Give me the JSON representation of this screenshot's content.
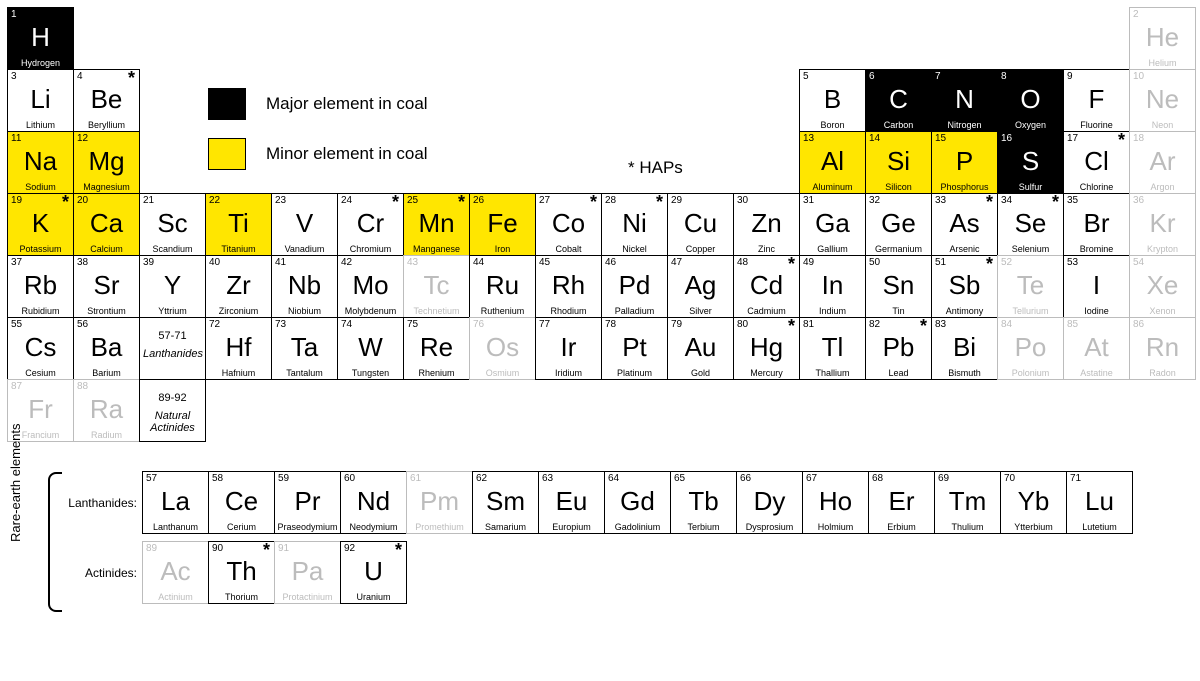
{
  "colors": {
    "major": "#000000",
    "major_text": "#ffffff",
    "minor": "#ffe600",
    "faded": "#bcbcbc",
    "normal": "#000000",
    "background": "#ffffff"
  },
  "legend": {
    "major": "Major element in coal",
    "minor": "Minor element in coal",
    "haps": "* HAPs"
  },
  "main_grid": {
    "cols": 18,
    "rows": 7
  },
  "mainCells": [
    {
      "r": 1,
      "c": 1,
      "n": "1",
      "s": "H",
      "name": "Hydrogen",
      "style": "major"
    },
    {
      "r": 1,
      "c": 18,
      "n": "2",
      "s": "He",
      "name": "Helium",
      "style": "faded"
    },
    {
      "r": 2,
      "c": 1,
      "n": "3",
      "s": "Li",
      "name": "Lithium",
      "style": "normal"
    },
    {
      "r": 2,
      "c": 2,
      "n": "4",
      "s": "Be",
      "name": "Beryllium",
      "style": "normal",
      "hap": true
    },
    {
      "r": 2,
      "c": 13,
      "n": "5",
      "s": "B",
      "name": "Boron",
      "style": "normal"
    },
    {
      "r": 2,
      "c": 14,
      "n": "6",
      "s": "C",
      "name": "Carbon",
      "style": "major"
    },
    {
      "r": 2,
      "c": 15,
      "n": "7",
      "s": "N",
      "name": "Nitrogen",
      "style": "major"
    },
    {
      "r": 2,
      "c": 16,
      "n": "8",
      "s": "O",
      "name": "Oxygen",
      "style": "major"
    },
    {
      "r": 2,
      "c": 17,
      "n": "9",
      "s": "F",
      "name": "Fluorine",
      "style": "normal"
    },
    {
      "r": 2,
      "c": 18,
      "n": "10",
      "s": "Ne",
      "name": "Neon",
      "style": "faded"
    },
    {
      "r": 3,
      "c": 1,
      "n": "11",
      "s": "Na",
      "name": "Sodium",
      "style": "minor"
    },
    {
      "r": 3,
      "c": 2,
      "n": "12",
      "s": "Mg",
      "name": "Magnesium",
      "style": "minor"
    },
    {
      "r": 3,
      "c": 13,
      "n": "13",
      "s": "Al",
      "name": "Aluminum",
      "style": "minor"
    },
    {
      "r": 3,
      "c": 14,
      "n": "14",
      "s": "Si",
      "name": "Silicon",
      "style": "minor"
    },
    {
      "r": 3,
      "c": 15,
      "n": "15",
      "s": "P",
      "name": "Phosphorus",
      "style": "minor"
    },
    {
      "r": 3,
      "c": 16,
      "n": "16",
      "s": "S",
      "name": "Sulfur",
      "style": "major"
    },
    {
      "r": 3,
      "c": 17,
      "n": "17",
      "s": "Cl",
      "name": "Chlorine",
      "style": "normal",
      "hap": true
    },
    {
      "r": 3,
      "c": 18,
      "n": "18",
      "s": "Ar",
      "name": "Argon",
      "style": "faded"
    },
    {
      "r": 4,
      "c": 1,
      "n": "19",
      "s": "K",
      "name": "Potassium",
      "style": "minor",
      "hap": true
    },
    {
      "r": 4,
      "c": 2,
      "n": "20",
      "s": "Ca",
      "name": "Calcium",
      "style": "minor"
    },
    {
      "r": 4,
      "c": 3,
      "n": "21",
      "s": "Sc",
      "name": "Scandium",
      "style": "normal"
    },
    {
      "r": 4,
      "c": 4,
      "n": "22",
      "s": "Ti",
      "name": "Titanium",
      "style": "minor"
    },
    {
      "r": 4,
      "c": 5,
      "n": "23",
      "s": "V",
      "name": "Vanadium",
      "style": "normal"
    },
    {
      "r": 4,
      "c": 6,
      "n": "24",
      "s": "Cr",
      "name": "Chromium",
      "style": "normal",
      "hap": true
    },
    {
      "r": 4,
      "c": 7,
      "n": "25",
      "s": "Mn",
      "name": "Manganese",
      "style": "minor",
      "hap": true
    },
    {
      "r": 4,
      "c": 8,
      "n": "26",
      "s": "Fe",
      "name": "Iron",
      "style": "minor"
    },
    {
      "r": 4,
      "c": 9,
      "n": "27",
      "s": "Co",
      "name": "Cobalt",
      "style": "normal",
      "hap": true
    },
    {
      "r": 4,
      "c": 10,
      "n": "28",
      "s": "Ni",
      "name": "Nickel",
      "style": "normal",
      "hap": true
    },
    {
      "r": 4,
      "c": 11,
      "n": "29",
      "s": "Cu",
      "name": "Copper",
      "style": "normal"
    },
    {
      "r": 4,
      "c": 12,
      "n": "30",
      "s": "Zn",
      "name": "Zinc",
      "style": "normal"
    },
    {
      "r": 4,
      "c": 13,
      "n": "31",
      "s": "Ga",
      "name": "Gallium",
      "style": "normal"
    },
    {
      "r": 4,
      "c": 14,
      "n": "32",
      "s": "Ge",
      "name": "Germanium",
      "style": "normal"
    },
    {
      "r": 4,
      "c": 15,
      "n": "33",
      "s": "As",
      "name": "Arsenic",
      "style": "normal",
      "hap": true
    },
    {
      "r": 4,
      "c": 16,
      "n": "34",
      "s": "Se",
      "name": "Selenium",
      "style": "normal",
      "hap": true
    },
    {
      "r": 4,
      "c": 17,
      "n": "35",
      "s": "Br",
      "name": "Bromine",
      "style": "normal"
    },
    {
      "r": 4,
      "c": 18,
      "n": "36",
      "s": "Kr",
      "name": "Krypton",
      "style": "faded"
    },
    {
      "r": 5,
      "c": 1,
      "n": "37",
      "s": "Rb",
      "name": "Rubidium",
      "style": "normal"
    },
    {
      "r": 5,
      "c": 2,
      "n": "38",
      "s": "Sr",
      "name": "Strontium",
      "style": "normal"
    },
    {
      "r": 5,
      "c": 3,
      "n": "39",
      "s": "Y",
      "name": "Yttrium",
      "style": "normal"
    },
    {
      "r": 5,
      "c": 4,
      "n": "40",
      "s": "Zr",
      "name": "Zirconium",
      "style": "normal"
    },
    {
      "r": 5,
      "c": 5,
      "n": "41",
      "s": "Nb",
      "name": "Niobium",
      "style": "normal"
    },
    {
      "r": 5,
      "c": 6,
      "n": "42",
      "s": "Mo",
      "name": "Molybdenum",
      "style": "normal"
    },
    {
      "r": 5,
      "c": 7,
      "n": "43",
      "s": "Tc",
      "name": "Technetium",
      "style": "faded"
    },
    {
      "r": 5,
      "c": 8,
      "n": "44",
      "s": "Ru",
      "name": "Ruthenium",
      "style": "normal"
    },
    {
      "r": 5,
      "c": 9,
      "n": "45",
      "s": "Rh",
      "name": "Rhodium",
      "style": "normal"
    },
    {
      "r": 5,
      "c": 10,
      "n": "46",
      "s": "Pd",
      "name": "Palladium",
      "style": "normal"
    },
    {
      "r": 5,
      "c": 11,
      "n": "47",
      "s": "Ag",
      "name": "Silver",
      "style": "normal"
    },
    {
      "r": 5,
      "c": 12,
      "n": "48",
      "s": "Cd",
      "name": "Cadmium",
      "style": "normal",
      "hap": true
    },
    {
      "r": 5,
      "c": 13,
      "n": "49",
      "s": "In",
      "name": "Indium",
      "style": "normal"
    },
    {
      "r": 5,
      "c": 14,
      "n": "50",
      "s": "Sn",
      "name": "Tin",
      "style": "normal"
    },
    {
      "r": 5,
      "c": 15,
      "n": "51",
      "s": "Sb",
      "name": "Antimony",
      "style": "normal",
      "hap": true
    },
    {
      "r": 5,
      "c": 16,
      "n": "52",
      "s": "Te",
      "name": "Tellurium",
      "style": "faded"
    },
    {
      "r": 5,
      "c": 17,
      "n": "53",
      "s": "I",
      "name": "Iodine",
      "style": "normal"
    },
    {
      "r": 5,
      "c": 18,
      "n": "54",
      "s": "Xe",
      "name": "Xenon",
      "style": "faded"
    },
    {
      "r": 6,
      "c": 1,
      "n": "55",
      "s": "Cs",
      "name": "Cesium",
      "style": "normal"
    },
    {
      "r": 6,
      "c": 2,
      "n": "56",
      "s": "Ba",
      "name": "Barium",
      "style": "normal"
    },
    {
      "r": 6,
      "c": 3,
      "placeholder": true,
      "p1": "57-71",
      "p2": "Lanthanides",
      "style": "normal"
    },
    {
      "r": 6,
      "c": 4,
      "n": "72",
      "s": "Hf",
      "name": "Hafnium",
      "style": "normal"
    },
    {
      "r": 6,
      "c": 5,
      "n": "73",
      "s": "Ta",
      "name": "Tantalum",
      "style": "normal"
    },
    {
      "r": 6,
      "c": 6,
      "n": "74",
      "s": "W",
      "name": "Tungsten",
      "style": "normal"
    },
    {
      "r": 6,
      "c": 7,
      "n": "75",
      "s": "Re",
      "name": "Rhenium",
      "style": "normal"
    },
    {
      "r": 6,
      "c": 8,
      "n": "76",
      "s": "Os",
      "name": "Osmium",
      "style": "faded"
    },
    {
      "r": 6,
      "c": 9,
      "n": "77",
      "s": "Ir",
      "name": "Iridium",
      "style": "normal"
    },
    {
      "r": 6,
      "c": 10,
      "n": "78",
      "s": "Pt",
      "name": "Platinum",
      "style": "normal"
    },
    {
      "r": 6,
      "c": 11,
      "n": "79",
      "s": "Au",
      "name": "Gold",
      "style": "normal"
    },
    {
      "r": 6,
      "c": 12,
      "n": "80",
      "s": "Hg",
      "name": "Mercury",
      "style": "normal",
      "hap": true
    },
    {
      "r": 6,
      "c": 13,
      "n": "81",
      "s": "Tl",
      "name": "Thallium",
      "style": "normal"
    },
    {
      "r": 6,
      "c": 14,
      "n": "82",
      "s": "Pb",
      "name": "Lead",
      "style": "normal",
      "hap": true
    },
    {
      "r": 6,
      "c": 15,
      "n": "83",
      "s": "Bi",
      "name": "Bismuth",
      "style": "normal"
    },
    {
      "r": 6,
      "c": 16,
      "n": "84",
      "s": "Po",
      "name": "Polonium",
      "style": "faded"
    },
    {
      "r": 6,
      "c": 17,
      "n": "85",
      "s": "At",
      "name": "Astatine",
      "style": "faded"
    },
    {
      "r": 6,
      "c": 18,
      "n": "86",
      "s": "Rn",
      "name": "Radon",
      "style": "faded"
    },
    {
      "r": 7,
      "c": 1,
      "n": "87",
      "s": "Fr",
      "name": "Francium",
      "style": "faded"
    },
    {
      "r": 7,
      "c": 2,
      "n": "88",
      "s": "Ra",
      "name": "Radium",
      "style": "faded"
    },
    {
      "r": 7,
      "c": 3,
      "placeholder": true,
      "p1": "89-92",
      "p2": "Natural Actinides",
      "style": "normal"
    }
  ],
  "rareEarth": {
    "side_label": "Rare-earth elements",
    "lanth_label": "Lanthanides:",
    "act_label": "Actinides:",
    "lanth": [
      {
        "n": "57",
        "s": "La",
        "name": "Lanthanum",
        "style": "normal"
      },
      {
        "n": "58",
        "s": "Ce",
        "name": "Cerium",
        "style": "normal"
      },
      {
        "n": "59",
        "s": "Pr",
        "name": "Praseodymium",
        "style": "normal"
      },
      {
        "n": "60",
        "s": "Nd",
        "name": "Neodymium",
        "style": "normal"
      },
      {
        "n": "61",
        "s": "Pm",
        "name": "Promethium",
        "style": "faded"
      },
      {
        "n": "62",
        "s": "Sm",
        "name": "Samarium",
        "style": "normal"
      },
      {
        "n": "63",
        "s": "Eu",
        "name": "Europium",
        "style": "normal"
      },
      {
        "n": "64",
        "s": "Gd",
        "name": "Gadolinium",
        "style": "normal"
      },
      {
        "n": "65",
        "s": "Tb",
        "name": "Terbium",
        "style": "normal"
      },
      {
        "n": "66",
        "s": "Dy",
        "name": "Dysprosium",
        "style": "normal"
      },
      {
        "n": "67",
        "s": "Ho",
        "name": "Holmium",
        "style": "normal"
      },
      {
        "n": "68",
        "s": "Er",
        "name": "Erbium",
        "style": "normal"
      },
      {
        "n": "69",
        "s": "Tm",
        "name": "Thulium",
        "style": "normal"
      },
      {
        "n": "70",
        "s": "Yb",
        "name": "Ytterbium",
        "style": "normal"
      },
      {
        "n": "71",
        "s": "Lu",
        "name": "Lutetium",
        "style": "normal"
      }
    ],
    "act": [
      {
        "n": "89",
        "s": "Ac",
        "name": "Actinium",
        "style": "faded"
      },
      {
        "n": "90",
        "s": "Th",
        "name": "Thorium",
        "style": "normal",
        "hap": true
      },
      {
        "n": "91",
        "s": "Pa",
        "name": "Protactinium",
        "style": "faded"
      },
      {
        "n": "92",
        "s": "U",
        "name": "Uranium",
        "style": "normal",
        "hap": true
      }
    ]
  }
}
